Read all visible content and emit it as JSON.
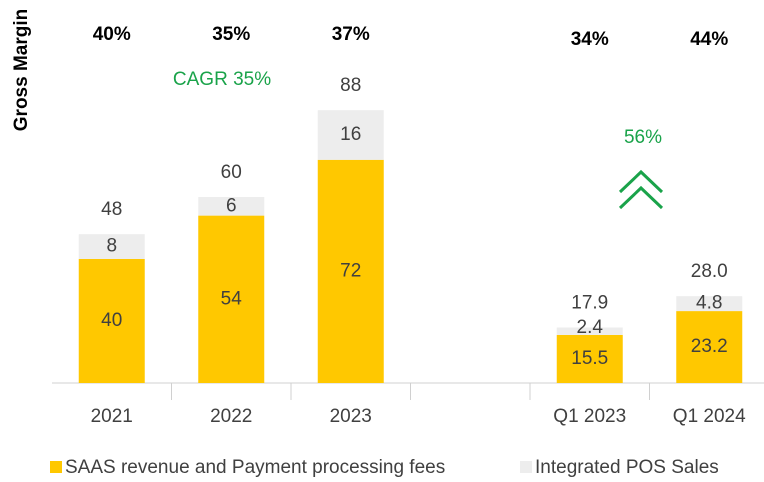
{
  "chart_data": {
    "type": "bar",
    "stacked": true,
    "categories": [
      "2021",
      "2022",
      "2023",
      null,
      "Q1 2023",
      "Q1 2024"
    ],
    "series": [
      {
        "name": "SAAS revenue and Payment processing fees",
        "color": "#FFC800",
        "values": [
          40,
          54,
          72,
          null,
          15.5,
          23.2
        ]
      },
      {
        "name": "Integrated POS Sales",
        "color": "#EDEDED",
        "values": [
          8,
          6,
          16,
          null,
          2.4,
          4.8
        ]
      }
    ],
    "totals": [
      48,
      60,
      88,
      null,
      17.9,
      28.0
    ],
    "total_value_labels": [
      "48",
      "60",
      "88",
      null,
      "17.9",
      "28.0"
    ],
    "gross_margin_label": "Gross Margin",
    "gross_margin": [
      40,
      35,
      37,
      null,
      34,
      44
    ],
    "gross_margin_value_labels": [
      "40%",
      "35%",
      "37%",
      null,
      "34%",
      "44%"
    ],
    "annotations": [
      "CAGR 35%",
      "56%"
    ],
    "annotation_color": "#1AA34A",
    "ylim": [
      0,
      100
    ],
    "legend": "bottom"
  }
}
